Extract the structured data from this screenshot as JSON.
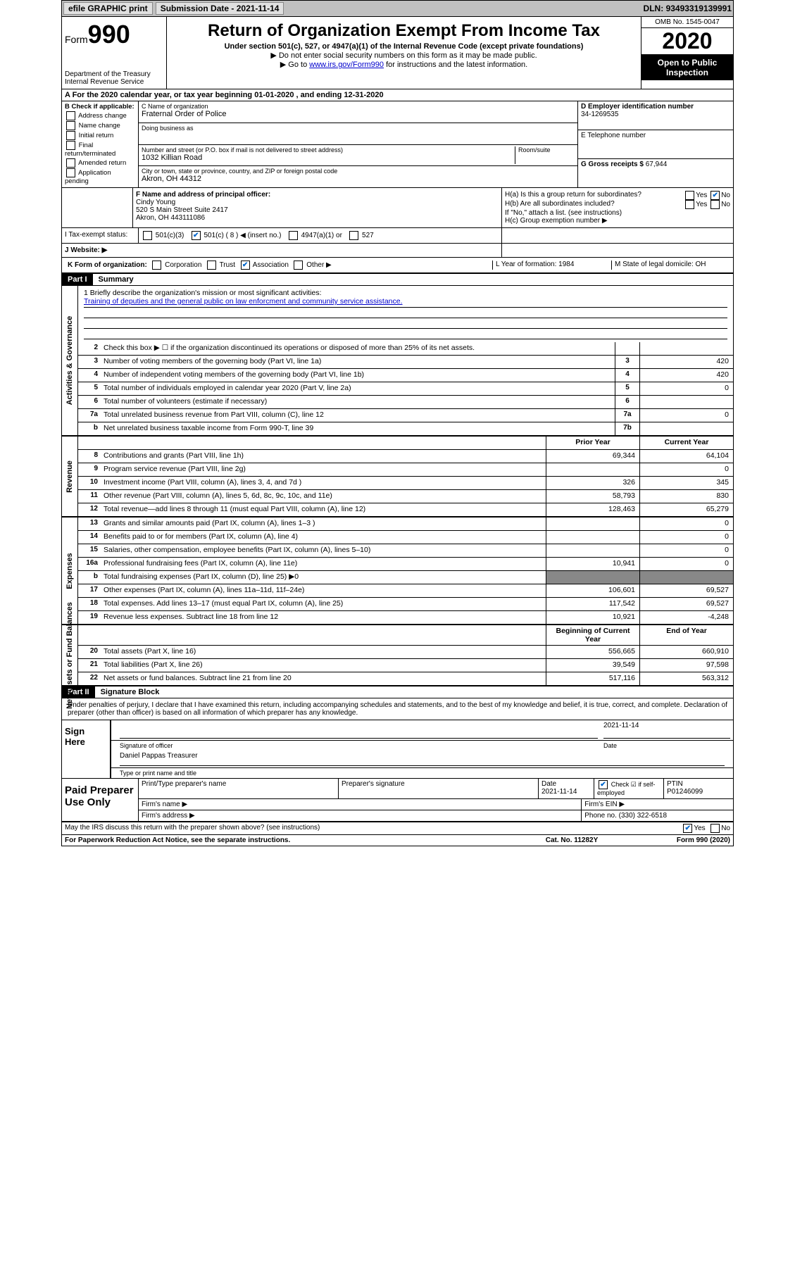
{
  "topbar": {
    "efile": "efile GRAPHIC print",
    "submission_label": "Submission Date",
    "submission_date": "2021-11-14",
    "dln_label": "DLN:",
    "dln": "93493319139991"
  },
  "header": {
    "form_label": "Form",
    "form_num": "990",
    "dept": "Department of the Treasury Internal Revenue Service",
    "title": "Return of Organization Exempt From Income Tax",
    "subtitle": "Under section 501(c), 527, or 4947(a)(1) of the Internal Revenue Code (except private foundations)",
    "note1": "▶ Do not enter social security numbers on this form as it may be made public.",
    "note2_pre": "▶ Go to ",
    "note2_link": "www.irs.gov/Form990",
    "note2_post": " for instructions and the latest information.",
    "omb": "OMB No. 1545-0047",
    "year": "2020",
    "inspection": "Open to Public Inspection"
  },
  "rowA": "A For the 2020 calendar year, or tax year beginning 01-01-2020    , and ending 12-31-2020",
  "boxB": {
    "title": "B Check if applicable:",
    "items": [
      "Address change",
      "Name change",
      "Initial return",
      "Final return/terminated",
      "Amended return",
      "Application pending"
    ]
  },
  "boxC": {
    "name_label": "C Name of organization",
    "name": "Fraternal Order of Police",
    "dba_label": "Doing business as",
    "street_label": "Number and street (or P.O. box if mail is not delivered to street address)",
    "room_label": "Room/suite",
    "street": "1032 Killian Road",
    "city_label": "City or town, state or province, country, and ZIP or foreign postal code",
    "city": "Akron, OH  44312"
  },
  "boxD": {
    "label": "D Employer identification number",
    "ein": "34-1269535",
    "tel_label": "E Telephone number",
    "gross_label": "G Gross receipts $",
    "gross": "67,944"
  },
  "boxF": {
    "label": "F  Name and address of principal officer:",
    "name": "Cindy Young",
    "addr1": "520 S Main Street Suite 2417",
    "addr2": "Akron, OH  443111086"
  },
  "boxH": {
    "ha": "H(a)  Is this a group return for subordinates?",
    "hb": "H(b)  Are all subordinates included?",
    "hb_note": "If \"No,\" attach a list. (see instructions)",
    "hc": "H(c)  Group exemption number ▶"
  },
  "taxRow": {
    "label": "I  Tax-exempt status:",
    "opts": [
      "501(c)(3)",
      "501(c) ( 8 ) ◀ (insert no.)",
      "4947(a)(1) or",
      "527"
    ]
  },
  "website": "J  Website: ▶",
  "rowK": {
    "k": "K Form of organization:",
    "opts": [
      "Corporation",
      "Trust",
      "Association",
      "Other ▶"
    ],
    "l": "L Year of formation: 1984",
    "m": "M State of legal domicile: OH"
  },
  "partI": {
    "header": "Part I",
    "title": "Summary",
    "mission_label": "1  Briefly describe the organization's mission or most significant activities:",
    "mission": "Training of deputies and the general public on law enforcment and community service assistance."
  },
  "governance": {
    "label": "Activities & Governance",
    "rows": [
      {
        "n": "2",
        "d": "Check this box ▶ ☐  if the organization discontinued its operations or disposed of more than 25% of its net assets.",
        "b": "",
        "v": ""
      },
      {
        "n": "3",
        "d": "Number of voting members of the governing body (Part VI, line 1a)",
        "b": "3",
        "v": "420"
      },
      {
        "n": "4",
        "d": "Number of independent voting members of the governing body (Part VI, line 1b)",
        "b": "4",
        "v": "420"
      },
      {
        "n": "5",
        "d": "Total number of individuals employed in calendar year 2020 (Part V, line 2a)",
        "b": "5",
        "v": "0"
      },
      {
        "n": "6",
        "d": "Total number of volunteers (estimate if necessary)",
        "b": "6",
        "v": ""
      },
      {
        "n": "7a",
        "d": "Total unrelated business revenue from Part VIII, column (C), line 12",
        "b": "7a",
        "v": "0"
      },
      {
        "n": "b",
        "d": "Net unrelated business taxable income from Form 990-T, line 39",
        "b": "7b",
        "v": ""
      }
    ]
  },
  "revenue": {
    "label": "Revenue",
    "header_prior": "Prior Year",
    "header_current": "Current Year",
    "rows": [
      {
        "n": "8",
        "d": "Contributions and grants (Part VIII, line 1h)",
        "p": "69,344",
        "c": "64,104"
      },
      {
        "n": "9",
        "d": "Program service revenue (Part VIII, line 2g)",
        "p": "",
        "c": "0"
      },
      {
        "n": "10",
        "d": "Investment income (Part VIII, column (A), lines 3, 4, and 7d )",
        "p": "326",
        "c": "345"
      },
      {
        "n": "11",
        "d": "Other revenue (Part VIII, column (A), lines 5, 6d, 8c, 9c, 10c, and 11e)",
        "p": "58,793",
        "c": "830"
      },
      {
        "n": "12",
        "d": "Total revenue—add lines 8 through 11 (must equal Part VIII, column (A), line 12)",
        "p": "128,463",
        "c": "65,279"
      }
    ]
  },
  "expenses": {
    "label": "Expenses",
    "rows": [
      {
        "n": "13",
        "d": "Grants and similar amounts paid (Part IX, column (A), lines 1–3 )",
        "p": "",
        "c": "0"
      },
      {
        "n": "14",
        "d": "Benefits paid to or for members (Part IX, column (A), line 4)",
        "p": "",
        "c": "0"
      },
      {
        "n": "15",
        "d": "Salaries, other compensation, employee benefits (Part IX, column (A), lines 5–10)",
        "p": "",
        "c": "0"
      },
      {
        "n": "16a",
        "d": "Professional fundraising fees (Part IX, column (A), line 11e)",
        "p": "10,941",
        "c": "0"
      },
      {
        "n": "b",
        "d": "Total fundraising expenses (Part IX, column (D), line 25) ▶0",
        "p": "shaded",
        "c": "shaded"
      },
      {
        "n": "17",
        "d": "Other expenses (Part IX, column (A), lines 11a–11d, 11f–24e)",
        "p": "106,601",
        "c": "69,527"
      },
      {
        "n": "18",
        "d": "Total expenses. Add lines 13–17 (must equal Part IX, column (A), line 25)",
        "p": "117,542",
        "c": "69,527"
      },
      {
        "n": "19",
        "d": "Revenue less expenses. Subtract line 18 from line 12",
        "p": "10,921",
        "c": "-4,248"
      }
    ]
  },
  "netassets": {
    "label": "Net Assets or Fund Balances",
    "header_prior": "Beginning of Current Year",
    "header_current": "End of Year",
    "rows": [
      {
        "n": "20",
        "d": "Total assets (Part X, line 16)",
        "p": "556,665",
        "c": "660,910"
      },
      {
        "n": "21",
        "d": "Total liabilities (Part X, line 26)",
        "p": "39,549",
        "c": "97,598"
      },
      {
        "n": "22",
        "d": "Net assets or fund balances. Subtract line 21 from line 20",
        "p": "517,116",
        "c": "563,312"
      }
    ]
  },
  "partII": {
    "header": "Part II",
    "title": "Signature Block",
    "perjury": "Under penalties of perjury, I declare that I have examined this return, including accompanying schedules and statements, and to the best of my knowledge and belief, it is true, correct, and complete. Declaration of preparer (other than officer) is based on all information of which preparer has any knowledge."
  },
  "sign": {
    "label": "Sign Here",
    "sig_label": "Signature of officer",
    "date": "2021-11-14",
    "date_label": "Date",
    "name": "Daniel Pappas  Treasurer",
    "name_label": "Type or print name and title"
  },
  "paid": {
    "label": "Paid Preparer Use Only",
    "h1": "Print/Type preparer's name",
    "h2": "Preparer's signature",
    "h3": "Date",
    "h3v": "2021-11-14",
    "h4": "Check ☑ if self-employed",
    "h5": "PTIN",
    "h5v": "P01246099",
    "firm_name": "Firm's name    ▶",
    "firm_ein": "Firm's EIN ▶",
    "firm_addr": "Firm's address ▶",
    "phone": "Phone no. (330) 322-6518"
  },
  "footer": {
    "discuss": "May the IRS discuss this return with the preparer shown above? (see instructions)",
    "paperwork": "For Paperwork Reduction Act Notice, see the separate instructions.",
    "cat": "Cat. No. 11282Y",
    "form": "Form 990 (2020)"
  }
}
